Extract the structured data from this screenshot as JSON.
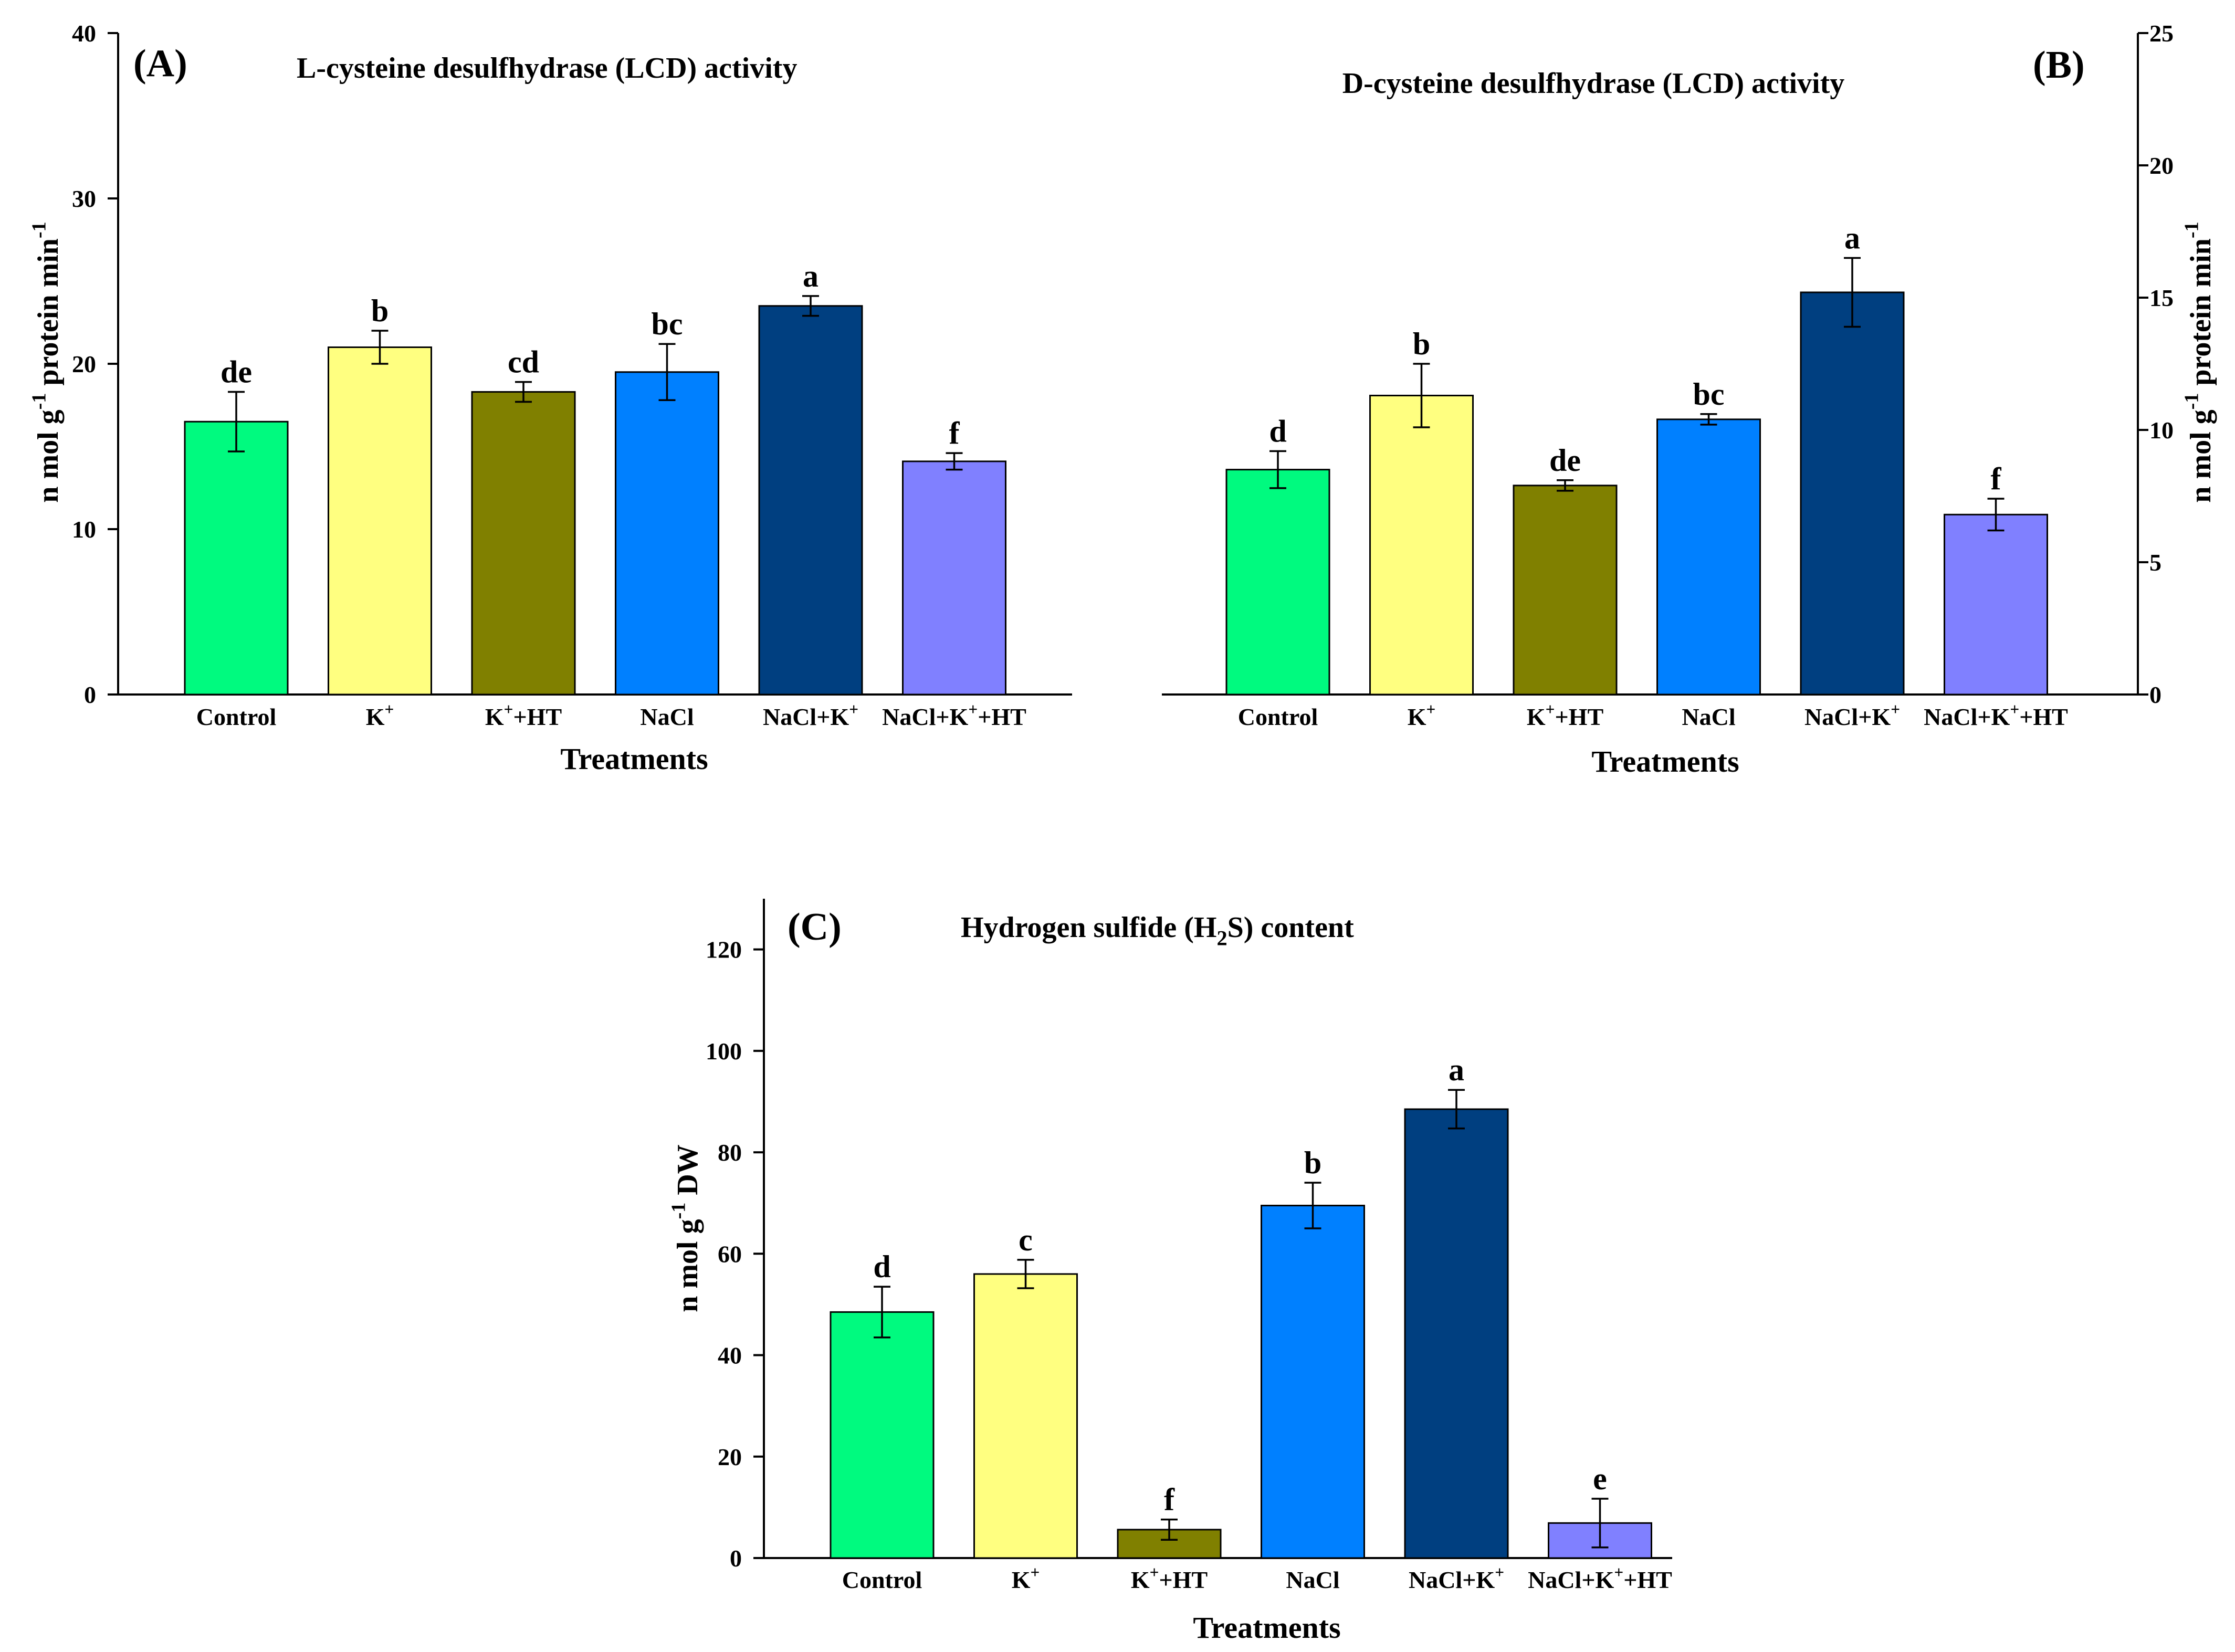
{
  "chart_data": [
    {
      "id": "A",
      "type": "bar",
      "panel_label": "(A)",
      "title": "L-cysteine desulfhydrase (LCD) activity",
      "title_parts": [
        {
          "text": "L-cysteine desulfhydrase (LCD) activity"
        }
      ],
      "xlabel": "Treatments",
      "ylabel_parts": [
        {
          "text": "n mol g"
        },
        {
          "text": "-1",
          "sup": true
        },
        {
          "text": " protein min"
        },
        {
          "text": "-1",
          "sup": true
        }
      ],
      "yaxis_side": "left",
      "ylim": [
        0,
        40
      ],
      "yticks": [
        0,
        10,
        20,
        30,
        40
      ],
      "categories": [
        [
          {
            "text": "Control"
          }
        ],
        [
          {
            "text": "K"
          },
          {
            "text": "+",
            "sup": true
          }
        ],
        [
          {
            "text": "K"
          },
          {
            "text": "+",
            "sup": true
          },
          {
            "text": "+HT"
          }
        ],
        [
          {
            "text": "NaCl"
          }
        ],
        [
          {
            "text": "NaCl+K"
          },
          {
            "text": "+",
            "sup": true
          }
        ],
        [
          {
            "text": "NaCl+K"
          },
          {
            "text": "+",
            "sup": true
          },
          {
            "text": "+HT"
          }
        ]
      ],
      "values": [
        16.5,
        21.0,
        18.3,
        19.5,
        23.5,
        14.1
      ],
      "errors": [
        1.8,
        1.0,
        0.6,
        1.7,
        0.6,
        0.5
      ],
      "letters": [
        "de",
        "b",
        "cd",
        "bc",
        "a",
        "f"
      ],
      "colors": [
        "#00FA7F",
        "#FFFF80",
        "#808000",
        "#0080FF",
        "#003F80",
        "#8080FF"
      ]
    },
    {
      "id": "B",
      "type": "bar",
      "panel_label": "(B)",
      "title": "D-cysteine desulfhydrase (LCD) activity",
      "title_parts": [
        {
          "text": "D-cysteine desulfhydrase (LCD) activity"
        }
      ],
      "xlabel": "Treatments",
      "ylabel_parts": [
        {
          "text": "n mol g"
        },
        {
          "text": "-1",
          "sup": true
        },
        {
          "text": " protein min"
        },
        {
          "text": "-1",
          "sup": true
        }
      ],
      "yaxis_side": "right",
      "ylim": [
        0,
        25
      ],
      "yticks": [
        0,
        5,
        10,
        15,
        20,
        25
      ],
      "categories": [
        [
          {
            "text": "Control"
          }
        ],
        [
          {
            "text": "K"
          },
          {
            "text": "+",
            "sup": true
          }
        ],
        [
          {
            "text": "K"
          },
          {
            "text": "+",
            "sup": true
          },
          {
            "text": "+HT"
          }
        ],
        [
          {
            "text": "NaCl"
          }
        ],
        [
          {
            "text": "NaCl+K"
          },
          {
            "text": "+",
            "sup": true
          }
        ],
        [
          {
            "text": "NaCl+K"
          },
          {
            "text": "+",
            "sup": true
          },
          {
            "text": "+HT"
          }
        ]
      ],
      "values": [
        8.5,
        11.3,
        7.9,
        10.4,
        15.2,
        6.8
      ],
      "errors": [
        0.7,
        1.2,
        0.2,
        0.2,
        1.3,
        0.6
      ],
      "letters": [
        "d",
        "b",
        "de",
        "bc",
        "a",
        "f"
      ],
      "colors": [
        "#00FA7F",
        "#FFFF80",
        "#808000",
        "#0080FF",
        "#003F80",
        "#8080FF"
      ]
    },
    {
      "id": "C",
      "type": "bar",
      "panel_label": "(C)",
      "title": "Hydrogen sulfide (H2S) content",
      "title_parts": [
        {
          "text": "Hydrogen sulfide (H"
        },
        {
          "text": "2",
          "sub": true
        },
        {
          "text": "S) content"
        }
      ],
      "xlabel": "Treatments",
      "ylabel_parts": [
        {
          "text": "n mol g"
        },
        {
          "text": "-1",
          "sup": true
        },
        {
          "text": " DW"
        }
      ],
      "yaxis_side": "left",
      "ylim": [
        0,
        130
      ],
      "yticks": [
        0,
        20,
        40,
        60,
        80,
        100,
        120
      ],
      "categories": [
        [
          {
            "text": "Control"
          }
        ],
        [
          {
            "text": "K"
          },
          {
            "text": "+",
            "sup": true
          }
        ],
        [
          {
            "text": "K"
          },
          {
            "text": "+",
            "sup": true
          },
          {
            "text": "+HT"
          }
        ],
        [
          {
            "text": "NaCl"
          }
        ],
        [
          {
            "text": "NaCl+K"
          },
          {
            "text": "+",
            "sup": true
          }
        ],
        [
          {
            "text": "NaCl+K"
          },
          {
            "text": "+",
            "sup": true
          },
          {
            "text": "+HT"
          }
        ]
      ],
      "values": [
        48.5,
        56.0,
        5.6,
        69.5,
        88.5,
        6.9
      ],
      "errors": [
        5.0,
        2.8,
        2.0,
        4.5,
        3.8,
        4.8
      ],
      "letters": [
        "d",
        "c",
        "f",
        "b",
        "a",
        "e"
      ],
      "colors": [
        "#00FA7F",
        "#FFFF80",
        "#808000",
        "#0080FF",
        "#003F80",
        "#8080FF"
      ]
    }
  ]
}
